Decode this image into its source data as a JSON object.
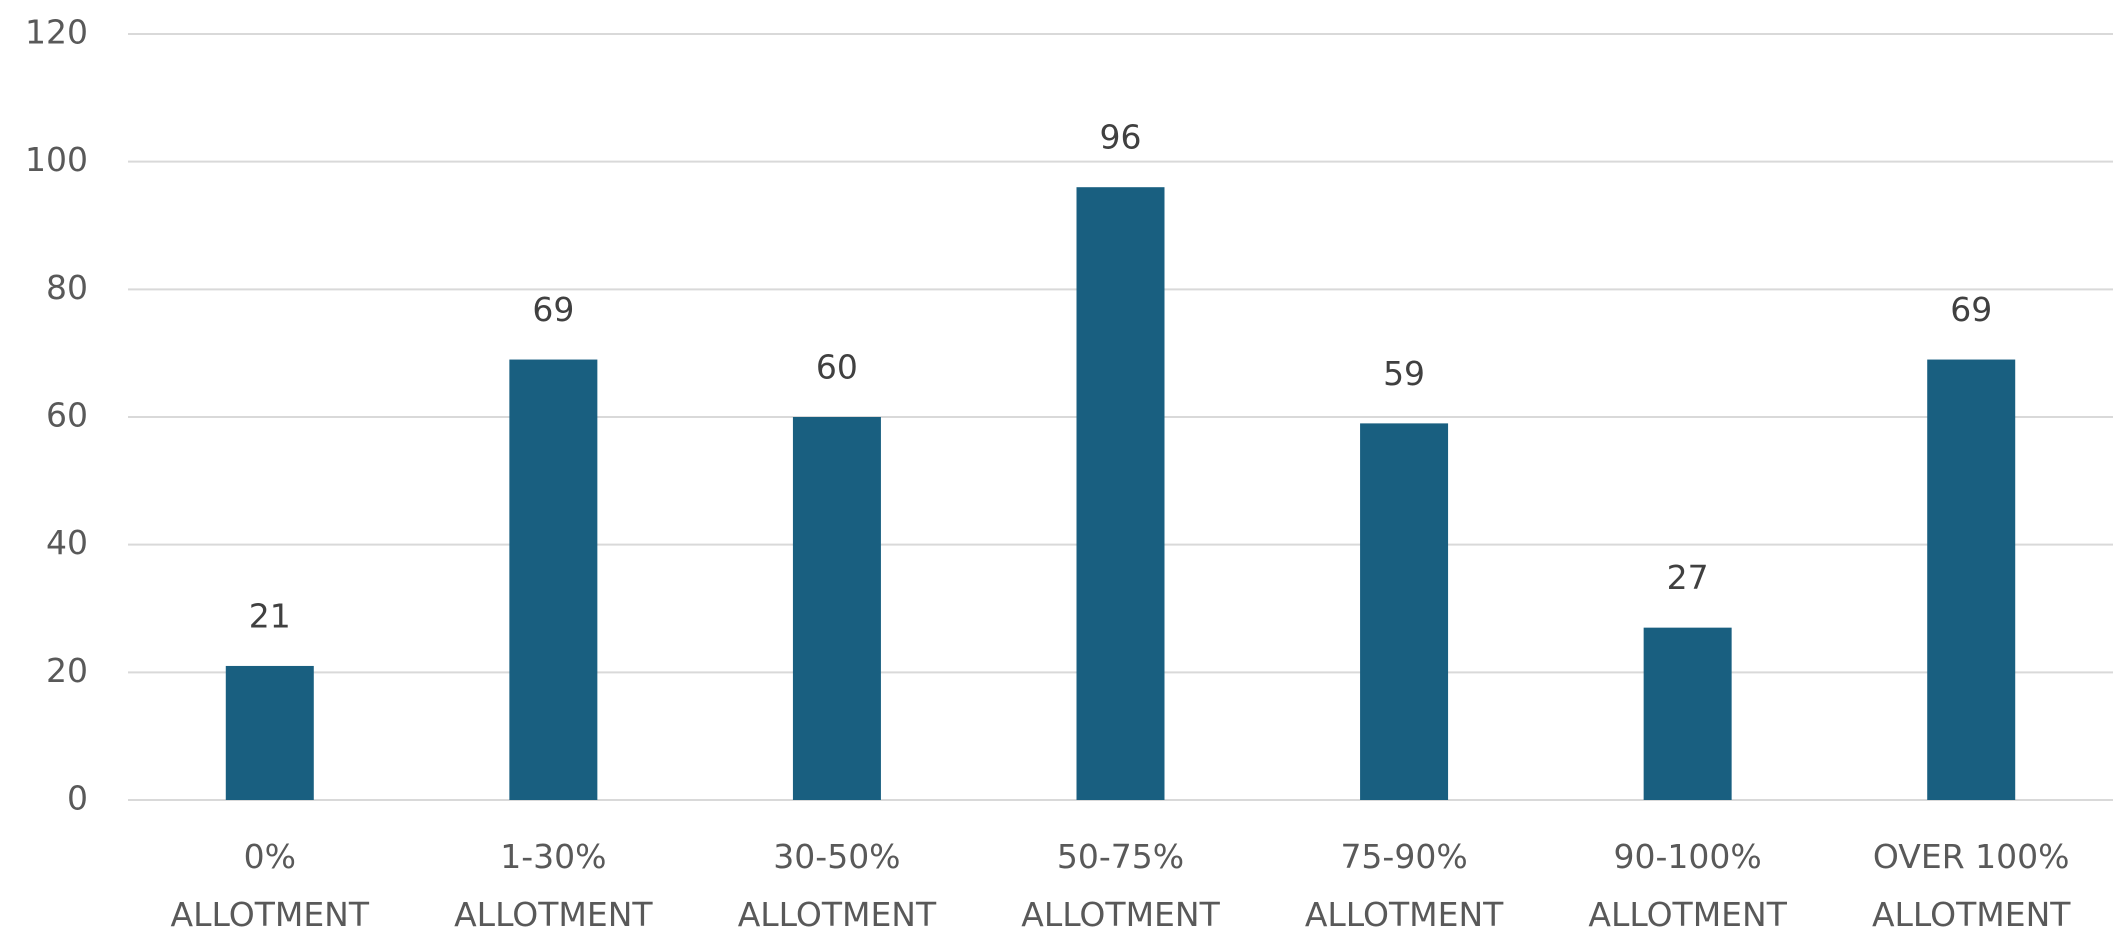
{
  "chart_data": {
    "type": "bar",
    "categories": [
      [
        "0%",
        "ALLOTMENT"
      ],
      [
        "1-30%",
        "ALLOTMENT"
      ],
      [
        "30-50%",
        "ALLOTMENT"
      ],
      [
        "50-75%",
        "ALLOTMENT"
      ],
      [
        "75-90%",
        "ALLOTMENT"
      ],
      [
        "90-100%",
        "ALLOTMENT"
      ],
      [
        "OVER 100%",
        "ALLOTMENT"
      ]
    ],
    "values": [
      21,
      69,
      60,
      96,
      59,
      27,
      69
    ],
    "color": "#195f80",
    "ylim": [
      0,
      120
    ],
    "yticks": [
      0,
      20,
      40,
      60,
      80,
      100,
      120
    ],
    "grid": true
  }
}
